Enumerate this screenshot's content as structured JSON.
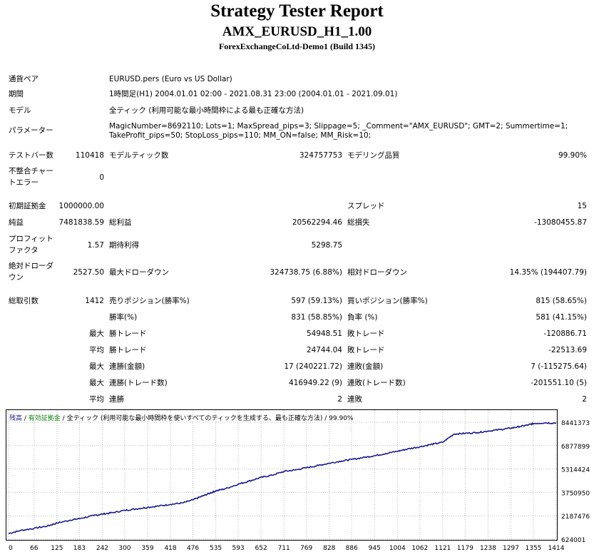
{
  "header": {
    "title": "Strategy Tester Report",
    "subtitle": "AMX_EURUSD_H1_1.00",
    "broker": "ForexExchangeCoLtd-Demo1 (Build 1345)"
  },
  "settings": {
    "symbol_label": "通貨ペア",
    "symbol_value": "EURUSD.pers (Euro vs US Dollar)",
    "period_label": "期間",
    "period_value": "1時間足(H1) 2004.01.01 02:00 - 2021.08.31 23:00 (2004.01.01 - 2021.09.01)",
    "model_label": "モデル",
    "model_value": "全ティック (利用可能な最小時間枠による最も正確な方法)",
    "params_label": "パラメーター",
    "params_line1": "MagicNumber=8692110; Lots=1; MaxSpread_pips=3; Slippage=5; _Comment=\"AMX_EURUSD\"; GMT=2; Summertime=1;",
    "params_line2": "TakeProfit_pips=50; StopLoss_pips=110; MM_ON=false; MM_Risk=10;"
  },
  "stats": {
    "bars_label": "テストバー数",
    "bars_value": "110418",
    "ticks_label": "モデルティック数",
    "ticks_value": "324757753",
    "quality_label": "モデリング品質",
    "quality_value": "99.90%",
    "mismatch_label_1": "不整合チャー",
    "mismatch_label_2": "トエラー",
    "mismatch_value": "0",
    "deposit_label": "初期証拠金",
    "deposit_value": "1000000.00",
    "spread_label": "スプレッド",
    "spread_value": "15",
    "net_label": "純益",
    "net_value": "7481838.59",
    "gross_profit_label": "総利益",
    "gross_profit_value": "20562294.46",
    "gross_loss_label": "総損失",
    "gross_loss_value": "-13080455.87",
    "pf_label_1": "プロフィット",
    "pf_label_2": "ファクタ",
    "pf_value": "1.57",
    "payoff_label": "期待利得",
    "payoff_value": "5298.75",
    "abs_dd_label_1": "絶対ドローダ",
    "abs_dd_label_2": "ウン",
    "abs_dd_value": "2527.50",
    "max_dd_label": "最大ドローダウン",
    "max_dd_value": "324738.75 (6.88%)",
    "rel_dd_label": "相対ドローダウン",
    "rel_dd_value": "14.35% (194407.79)",
    "trades_label": "総取引数",
    "trades_value": "1412",
    "short_label": "売りポジション(勝率%)",
    "short_value": "597 (59.13%)",
    "long_label": "買いポジション(勝率%)",
    "long_value": "815 (58.65%)",
    "win_label": "勝率(%)",
    "win_value": "831 (58.85%)",
    "loss_label": "負率 (%)",
    "loss_value": "581 (41.15%)",
    "max_prefix": "最大",
    "avg_prefix": "平均",
    "largest_win_label": "勝トレード",
    "largest_win_value": "54948.51",
    "largest_loss_label": "敗トレード",
    "largest_loss_value": "-120886.71",
    "avg_win_label": "勝トレード",
    "avg_win_value": "24744.04",
    "avg_loss_label": "敗トレード",
    "avg_loss_value": "-22513.69",
    "max_consec_win_money_label": "連勝(金額)",
    "max_consec_win_money_value": "17 (240221.72)",
    "max_consec_loss_money_label": "連敗(金額)",
    "max_consec_loss_money_value": "7 (-115275.64)",
    "max_consec_win_trades_label": "連勝(トレード数)",
    "max_consec_win_trades_value": "416949.22 (9)",
    "max_consec_loss_trades_label": "連敗(トレード数)",
    "max_consec_loss_trades_value": "-201551.10 (5)",
    "avg_consec_win_label": "連勝",
    "avg_consec_win_value": "2",
    "avg_consec_loss_label": "連敗",
    "avg_consec_loss_value": "2"
  },
  "chart_data": {
    "type": "line",
    "legend_balance": "残高",
    "legend_separator": " / ",
    "legend_margin": "有効証拠金",
    "legend_model": "全ティック (利用可能な最小時間枠を使いすべてのティックを生成する、最も正確な方法)",
    "legend_quality": "99.90%",
    "x_ticks": [
      0,
      66,
      125,
      183,
      242,
      300,
      359,
      418,
      476,
      535,
      593,
      652,
      711,
      769,
      828,
      886,
      945,
      1004,
      1062,
      1121,
      1179,
      1238,
      1297,
      1355,
      1414
    ],
    "y_ticks": [
      624001,
      2187476,
      3750950,
      5314424,
      6877899,
      8441373
    ],
    "xlim": [
      0,
      1414
    ],
    "ylim": [
      624001,
      8441373
    ],
    "colors": {
      "line": "#1a1a8c",
      "grid": "#b8b8b8"
    },
    "series": [
      {
        "x": [
          0,
          30,
          66,
          100,
          125,
          160,
          183,
          220,
          242,
          270,
          300,
          330,
          359,
          390,
          418,
          450,
          476,
          500,
          520,
          535,
          560,
          593,
          620,
          652,
          680,
          711,
          740,
          769,
          800,
          828,
          860,
          886,
          920,
          945,
          975,
          1004,
          1030,
          1062,
          1090,
          1121,
          1150,
          1179,
          1210,
          1238,
          1270,
          1297,
          1320,
          1340,
          1355,
          1385,
          1414
        ],
        "values": [
          1000000,
          1200000,
          1350000,
          1500000,
          1700000,
          1900000,
          2000000,
          2200000,
          2300000,
          2400000,
          2550000,
          2650000,
          2750000,
          2850000,
          2950000,
          3050000,
          3250000,
          3500000,
          3700000,
          3850000,
          4000000,
          4300000,
          4500000,
          4750000,
          4900000,
          5150000,
          5250000,
          5400000,
          5550000,
          5700000,
          5850000,
          5950000,
          6100000,
          6200000,
          6350000,
          6500000,
          6650000,
          6800000,
          6950000,
          7100000,
          7650000,
          7700000,
          7750000,
          7850000,
          7950000,
          8050000,
          8150000,
          8250000,
          8350000,
          8400000,
          8380000
        ]
      }
    ]
  }
}
